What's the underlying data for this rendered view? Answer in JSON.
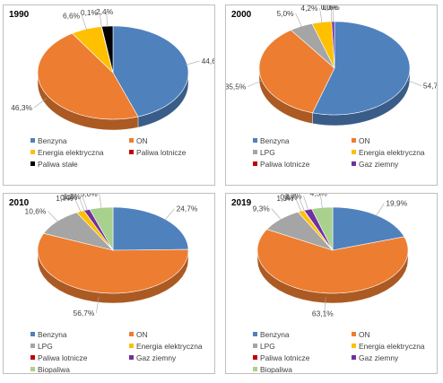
{
  "chart_data": [
    {
      "type": "pie",
      "title": "1990",
      "categories": [
        "Benzyna",
        "ON",
        "Energia elektryczna",
        "Paliwa lotnicze",
        "Paliwa stałe"
      ],
      "values": [
        44.6,
        46.3,
        6.6,
        0.1,
        2.4
      ],
      "data_labels": [
        "44,6%",
        "46,3%",
        "6,6%",
        "0,1%",
        "2,4%"
      ],
      "legend_position": "bottom"
    },
    {
      "type": "pie",
      "title": "2000",
      "categories": [
        "Benzyna",
        "ON",
        "LPG",
        "Energia elektryczna",
        "Paliwa lotnicze",
        "Gaz ziemny"
      ],
      "values": [
        54.7,
        35.5,
        5.0,
        4.2,
        0.0,
        0.6
      ],
      "data_labels": [
        "54,7%",
        "35,5%",
        "5,0%",
        "4,2%",
        "0,0%",
        "0,6%"
      ],
      "legend_position": "bottom"
    },
    {
      "type": "pie",
      "title": "2010",
      "categories": [
        "Benzyna",
        "ON",
        "LPG",
        "Energia elektryczna",
        "Paliwa lotnicze",
        "Gaz ziemny",
        "Biopaliwa"
      ],
      "values": [
        24.7,
        56.7,
        10.6,
        1.7,
        0.0,
        1.3,
        5.0
      ],
      "data_labels": [
        "24,7%",
        "56,7%",
        "10,6%",
        "1,7%",
        "0,0%",
        "1,3%",
        "5,0%"
      ],
      "legend_position": "bottom"
    },
    {
      "type": "pie",
      "title": "2019",
      "categories": [
        "Benzyna",
        "ON",
        "LPG",
        "Energia elektryczna",
        "Paliwa lotnicze",
        "Gaz ziemny",
        "Biopaliwa"
      ],
      "values": [
        19.9,
        63.1,
        9.3,
        1.3,
        0.1,
        1.7,
        4.5
      ],
      "data_labels": [
        "19,9%",
        "63,1%",
        "9,3%",
        "1,3%",
        "0,1%",
        "1,7%",
        "4,5%"
      ],
      "legend_position": "bottom"
    }
  ],
  "colors": {
    "Benzyna": "#4f81bd",
    "ON": "#ed7d31",
    "LPG": "#a5a5a5",
    "Energia elektryczna": "#ffc000",
    "Paliwa lotnicze": "#c00000",
    "Gaz ziemny": "#7030a0",
    "Biopaliwa": "#a9d18e",
    "Paliwa stałe": "#000000"
  }
}
